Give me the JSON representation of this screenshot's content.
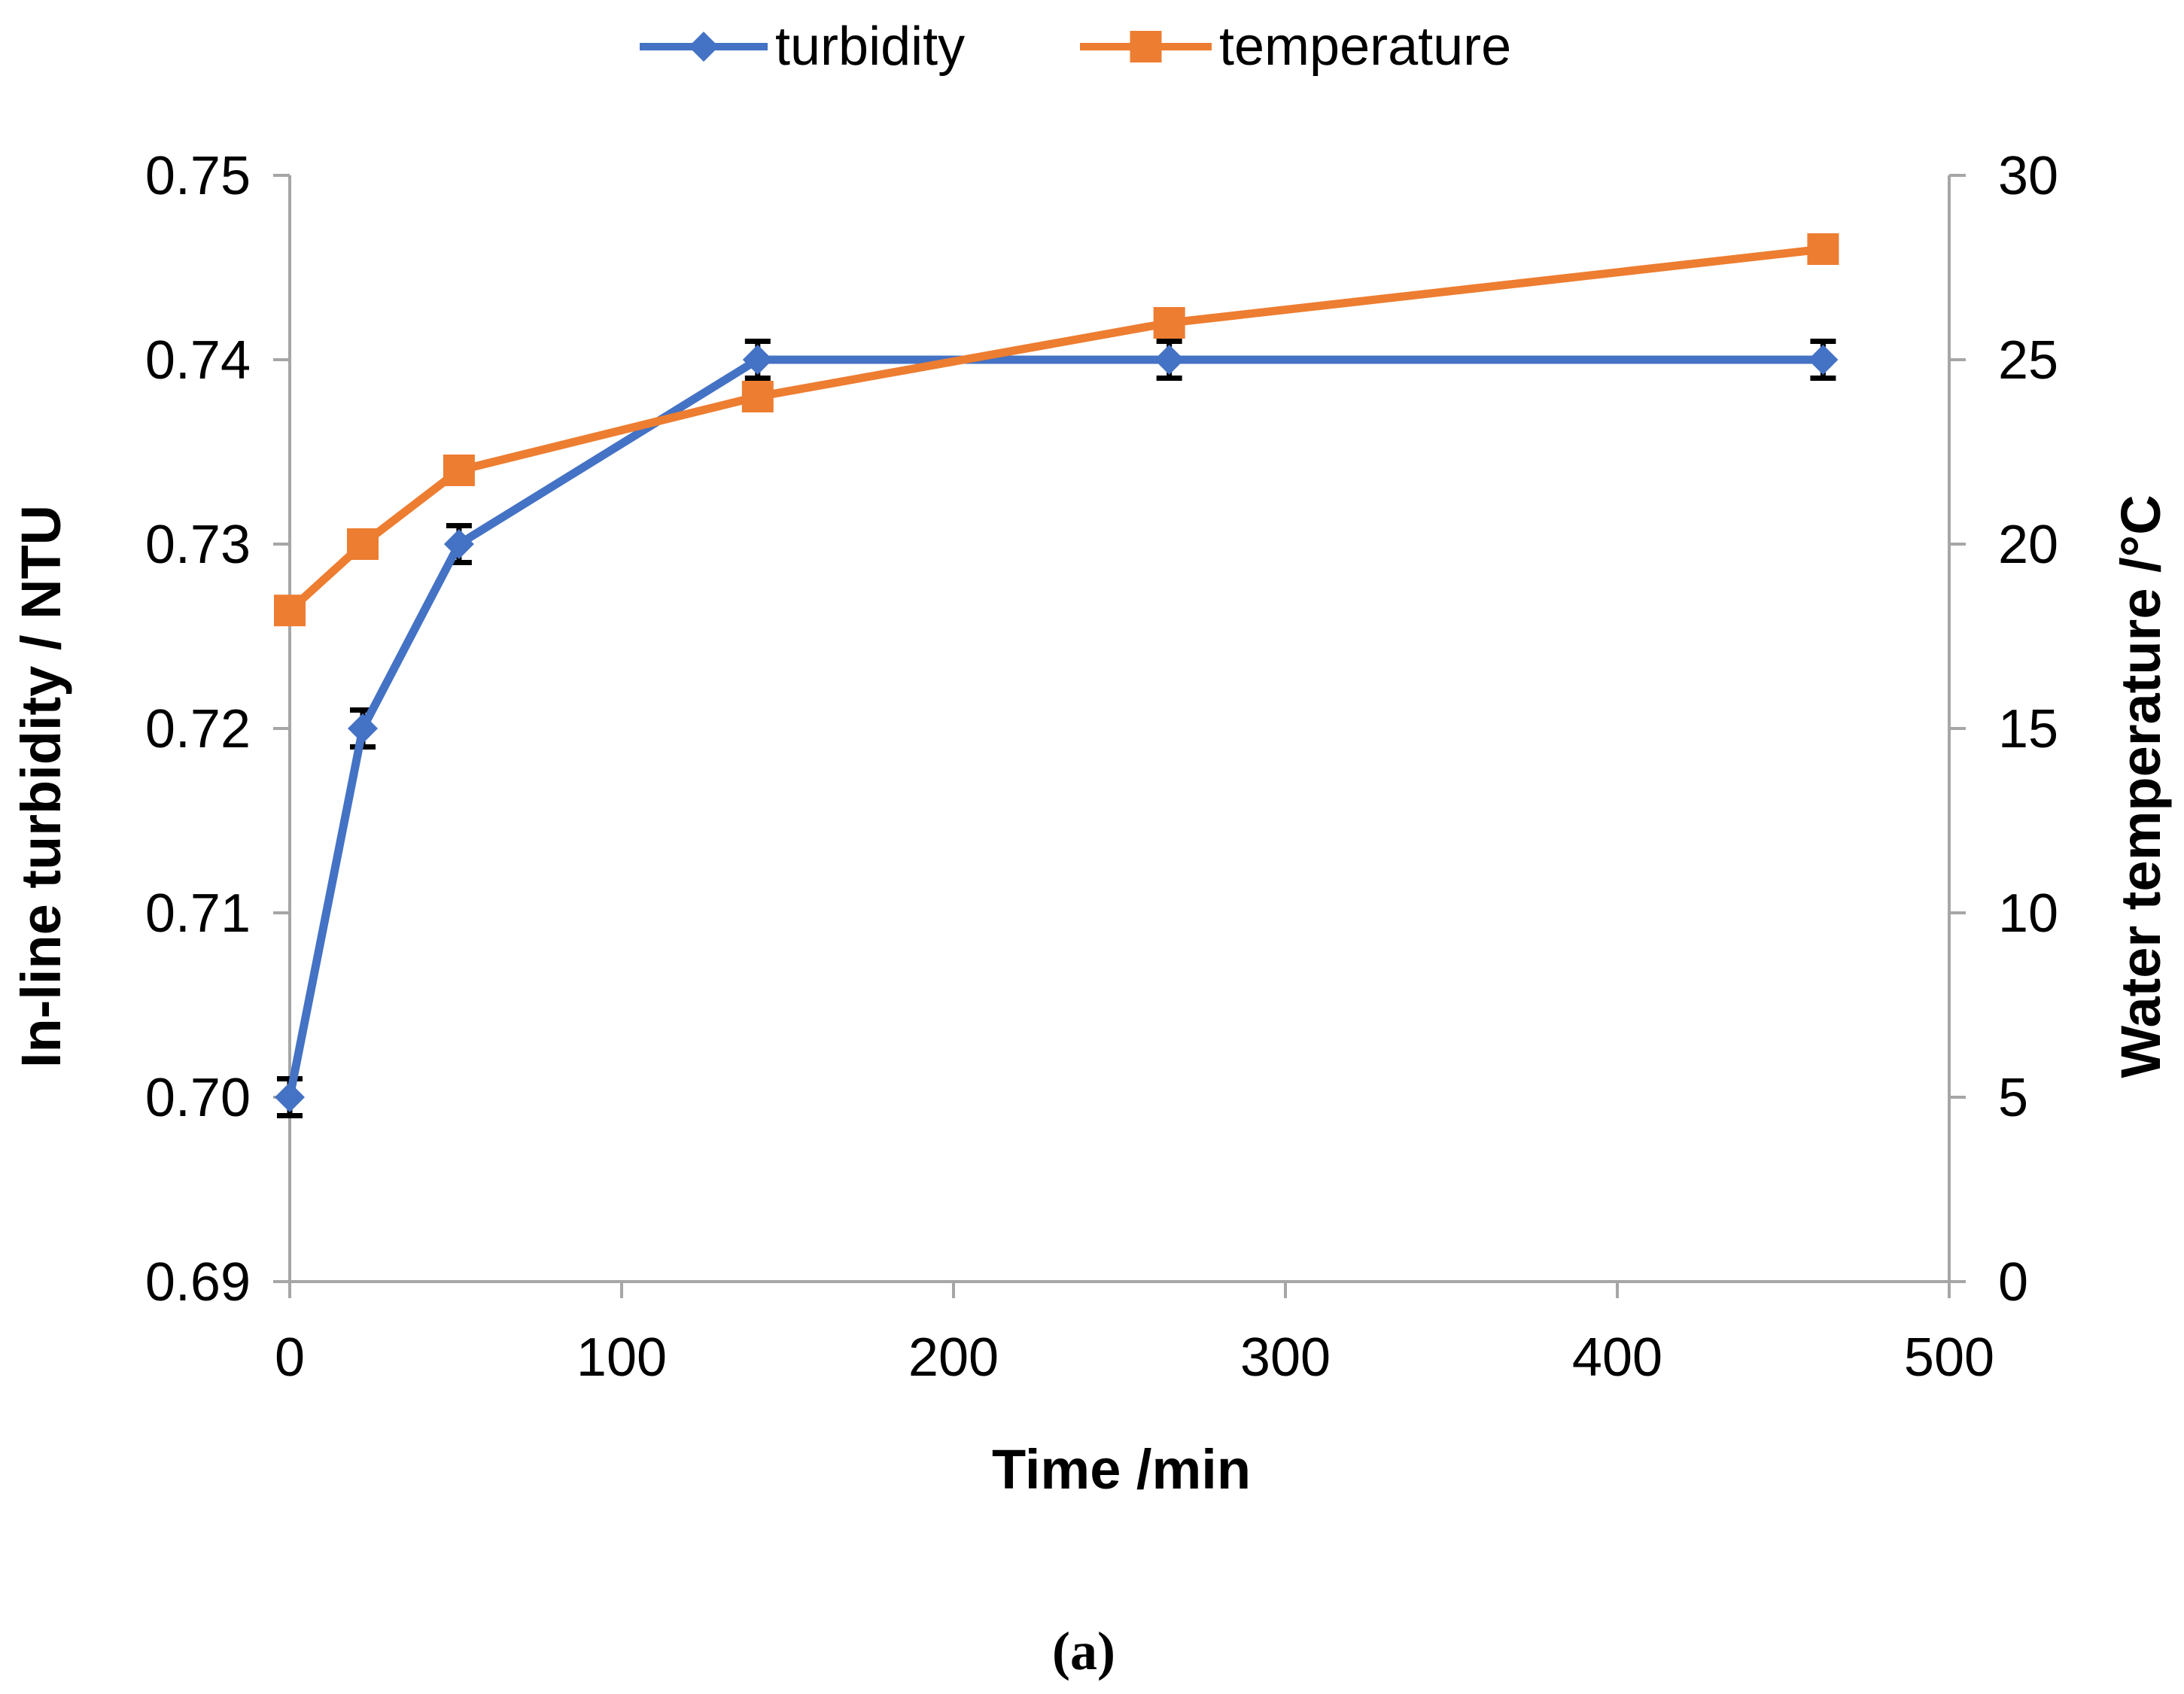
{
  "chart_data": {
    "type": "line",
    "title": "",
    "xlabel": "Time /min",
    "ylabel_left": "In-line turbidity / NTU",
    "ylabel_right": "Water temperature /°C",
    "caption": "(a)",
    "xlim": [
      0,
      500
    ],
    "xticks": [
      0,
      100,
      200,
      300,
      400,
      500
    ],
    "ylim_left": [
      0.69,
      0.75
    ],
    "yticks_left": [
      "0.69",
      "0.70",
      "0.71",
      "0.72",
      "0.73",
      "0.74",
      "0.75"
    ],
    "ylim_right": [
      0,
      30
    ],
    "yticks_right": [
      0,
      5,
      10,
      15,
      20,
      25,
      30
    ],
    "legend_position": "top-center",
    "grid": false,
    "series": [
      {
        "name": "turbidity",
        "axis": "left",
        "color": "#4472C4",
        "marker": "diamond",
        "x": [
          0,
          22,
          51,
          141,
          265,
          462
        ],
        "y": [
          0.7,
          0.72,
          0.73,
          0.74,
          0.74,
          0.74
        ],
        "error": [
          0.001,
          0.001,
          0.001,
          0.001,
          0.001,
          0.001
        ]
      },
      {
        "name": "temperature",
        "axis": "right",
        "color": "#ED7D31",
        "marker": "square",
        "x": [
          0,
          22,
          51,
          141,
          265,
          462
        ],
        "y": [
          18.2,
          20.0,
          22.0,
          24.0,
          26.0,
          28.0
        ]
      }
    ]
  }
}
